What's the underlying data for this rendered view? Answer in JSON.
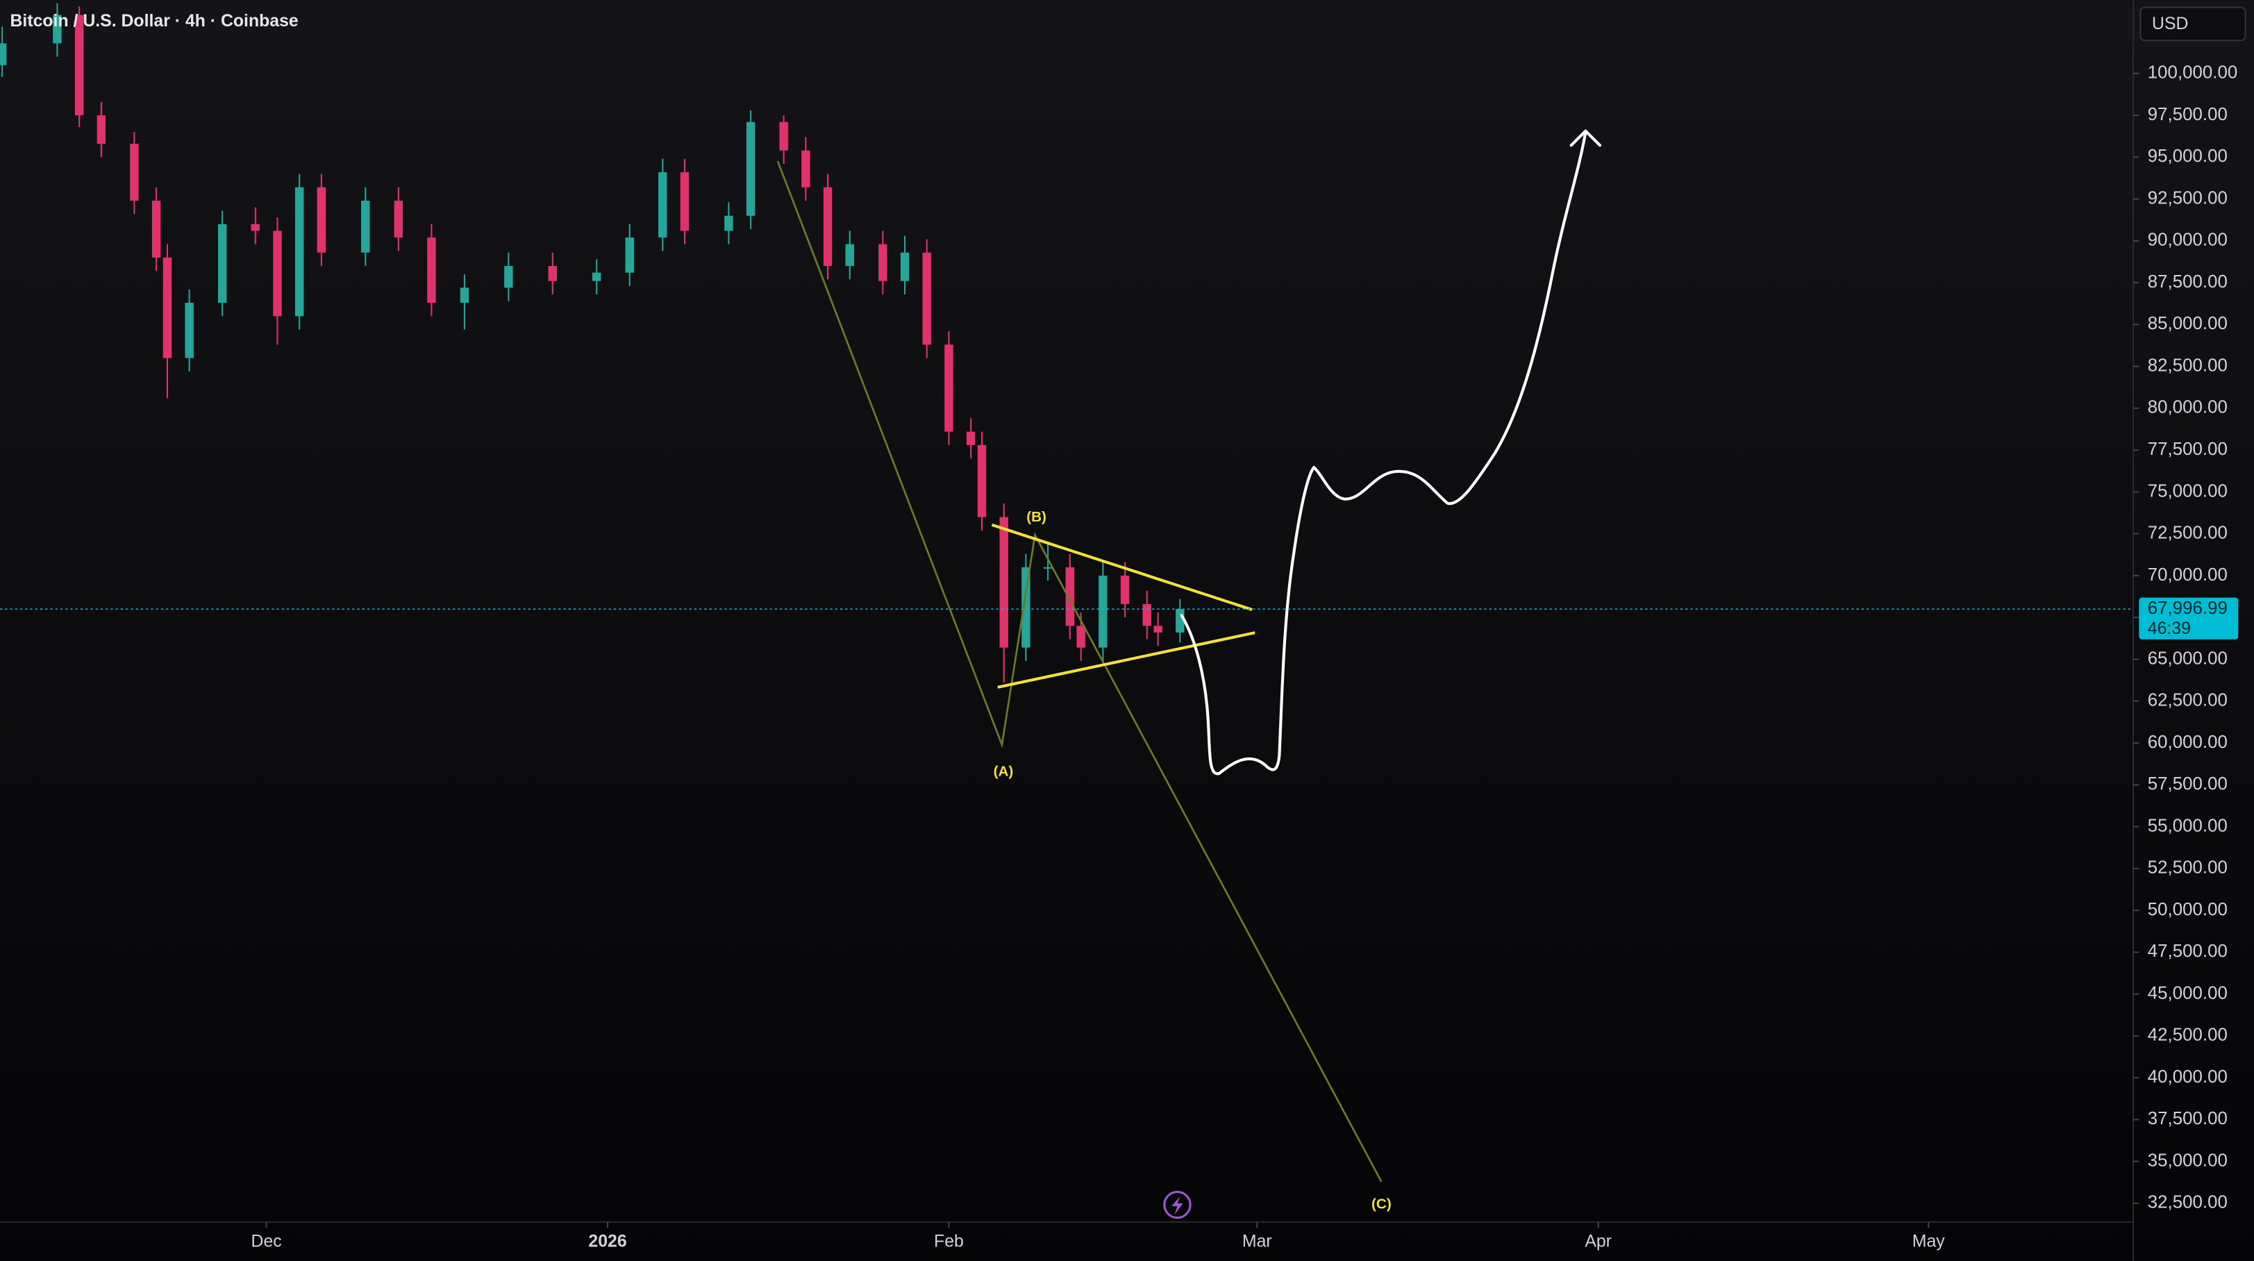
{
  "chart_data": {
    "type": "candlestick",
    "title": "Bitcoin / U.S. Dollar · 4h · Coinbase",
    "currency": "USD",
    "up_color": "#26a69a",
    "down_color": "#e0336b",
    "x": [
      -55,
      -50,
      -48,
      -46,
      -43,
      -41,
      -40,
      -38,
      -35,
      -32,
      -30,
      -28,
      -26,
      -22,
      -19,
      -16,
      -13,
      -9,
      -5,
      -1,
      2,
      5,
      7,
      11,
      13,
      16,
      18,
      20,
      22,
      25,
      27,
      29,
      31,
      33,
      34,
      36,
      38,
      40,
      42,
      43,
      45,
      47,
      49,
      50,
      52
    ],
    "open": [
      100500,
      101800,
      103500,
      97500,
      95800,
      92400,
      89000,
      83000,
      86300,
      91000,
      90600,
      85500,
      93200,
      89300,
      92400,
      90200,
      86300,
      87200,
      88500,
      87600,
      88100,
      90200,
      94100,
      90600,
      91500,
      97100,
      95400,
      93200,
      88500,
      89800,
      87600,
      89300,
      83800,
      78600,
      77800,
      73500,
      65700,
      70500,
      70500,
      67000,
      65700,
      70000,
      68300,
      67000,
      66600
    ],
    "high": [
      102800,
      104200,
      104000,
      98300,
      96500,
      93200,
      89800,
      87100,
      91800,
      92000,
      91400,
      94000,
      94000,
      93200,
      93200,
      91000,
      88000,
      89300,
      89300,
      88900,
      91000,
      94900,
      94900,
      92300,
      97800,
      97500,
      96200,
      94000,
      90600,
      90600,
      90300,
      90100,
      84600,
      79400,
      78600,
      74300,
      71300,
      71900,
      71300,
      67800,
      70800,
      70800,
      69100,
      67800,
      68600
    ],
    "low": [
      99800,
      101000,
      96800,
      95000,
      91600,
      88200,
      80600,
      82200,
      85500,
      89800,
      83800,
      84700,
      88500,
      88500,
      89400,
      85500,
      84700,
      86400,
      86800,
      86800,
      87300,
      89400,
      89800,
      89800,
      90700,
      94600,
      92400,
      87700,
      87700,
      86800,
      86800,
      83000,
      77800,
      77000,
      72700,
      63600,
      64900,
      69700,
      66200,
      64900,
      64900,
      67500,
      66200,
      65800,
      66000
    ],
    "close": [
      101800,
      103500,
      97500,
      95800,
      92400,
      89000,
      83000,
      86300,
      91000,
      90600,
      85500,
      93200,
      89300,
      92400,
      90200,
      86300,
      87200,
      88500,
      87600,
      88100,
      90200,
      94100,
      90600,
      91500,
      97100,
      95400,
      93200,
      88500,
      89800,
      87600,
      89300,
      83800,
      78600,
      77800,
      73500,
      65700,
      70500,
      70500,
      67000,
      65700,
      70000,
      68300,
      67000,
      66600,
      67996.99
    ],
    "last_price": {
      "value": 67996.99,
      "label": "67,996.99"
    },
    "countdown": "46:39",
    "annotations": [
      "(A)",
      "(B)",
      "(C)"
    ],
    "xlim": [
      -55.2,
      138.6
    ],
    "xticks": [
      {
        "value": -31,
        "label": "Dec"
      },
      {
        "value": 0,
        "label": "2026"
      },
      {
        "value": 31,
        "label": "Feb"
      },
      {
        "value": 59,
        "label": "Mar"
      },
      {
        "value": 90,
        "label": "Apr"
      },
      {
        "value": 120,
        "label": "May"
      }
    ],
    "ylim": [
      31380,
      104380
    ],
    "yticks": [
      {
        "value": 32500,
        "label": "32,500.00"
      },
      {
        "value": 35000,
        "label": "35,000.00"
      },
      {
        "value": 37500,
        "label": "37,500.00"
      },
      {
        "value": 40000,
        "label": "40,000.00"
      },
      {
        "value": 42500,
        "label": "42,500.00"
      },
      {
        "value": 45000,
        "label": "45,000.00"
      },
      {
        "value": 47500,
        "label": "47,500.00"
      },
      {
        "value": 50000,
        "label": "50,000.00"
      },
      {
        "value": 52500,
        "label": "52,500.00"
      },
      {
        "value": 55000,
        "label": "55,000.00"
      },
      {
        "value": 57500,
        "label": "57,500.00"
      },
      {
        "value": 60000,
        "label": "60,000.00"
      },
      {
        "value": 62500,
        "label": "62,500.00"
      },
      {
        "value": 65000,
        "label": "65,000.00"
      },
      {
        "value": 67500,
        "label": "67,500.00"
      },
      {
        "value": 70000,
        "label": "70,000.00"
      },
      {
        "value": 72500,
        "label": "72,500.00"
      },
      {
        "value": 75000,
        "label": "75,000.00"
      },
      {
        "value": 77500,
        "label": "77,500.00"
      },
      {
        "value": 80000,
        "label": "80,000.00"
      },
      {
        "value": 82500,
        "label": "82,500.00"
      },
      {
        "value": 85000,
        "label": "85,000.00"
      },
      {
        "value": 87500,
        "label": "87,500.00"
      },
      {
        "value": 90000,
        "label": "90,000.00"
      },
      {
        "value": 92500,
        "label": "92,500.00"
      },
      {
        "value": 95000,
        "label": "95,000.00"
      },
      {
        "value": 97500,
        "label": "97,500.00"
      },
      {
        "value": 100000,
        "label": "100,000.00"
      }
    ]
  }
}
